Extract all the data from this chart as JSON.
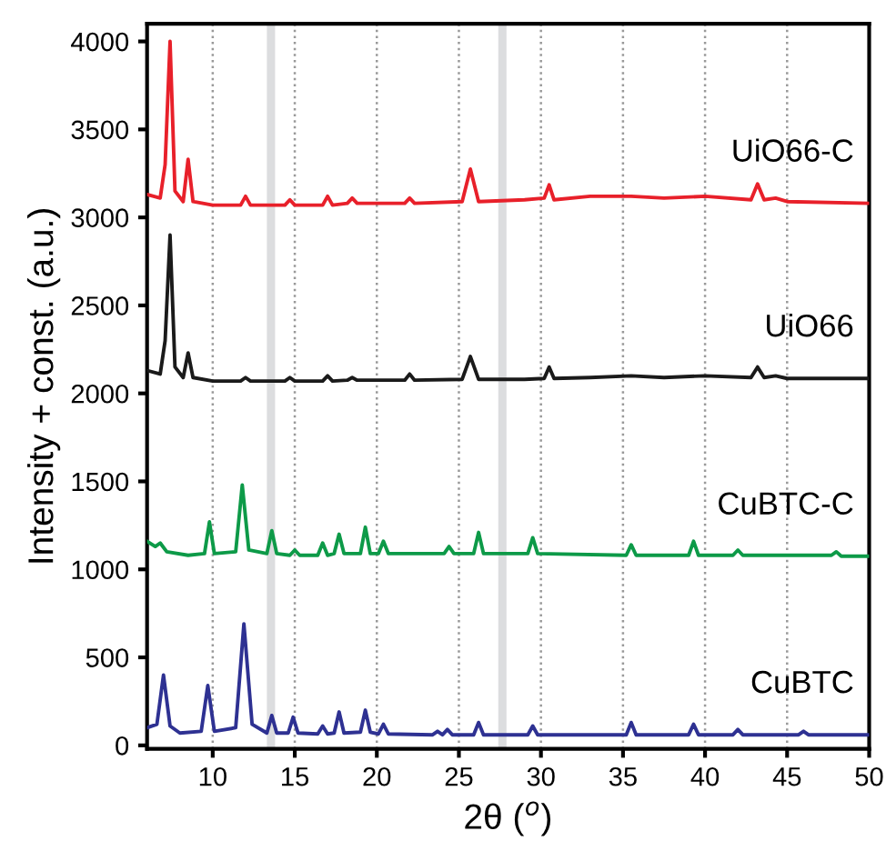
{
  "chart_data": {
    "type": "line",
    "xlabel": "2θ ($^{o}$)",
    "ylabel": "Intensity + const. (a.u.)",
    "xlim": [
      6,
      50
    ],
    "ylim": [
      -20,
      4100
    ],
    "xticks": [
      10,
      15,
      20,
      25,
      30,
      35,
      40,
      45,
      50
    ],
    "yticks": [
      0,
      500,
      1000,
      1500,
      2000,
      2500,
      3000,
      3500,
      4000
    ],
    "grid": "x",
    "legend": false,
    "bands": [
      {
        "axis": "x",
        "from": 13.3,
        "to": 13.8,
        "color": "#dcdddf"
      },
      {
        "axis": "x",
        "from": 27.4,
        "to": 27.9,
        "color": "#dcdddf"
      }
    ],
    "series": [
      {
        "name": "CuBTC",
        "color": "#2e3192",
        "x": [
          6,
          6.6,
          7,
          7.4,
          8,
          9.3,
          9.7,
          10.1,
          11.4,
          11.9,
          12.4,
          13.3,
          13.6,
          13.9,
          14.6,
          14.9,
          15.2,
          16.4,
          16.7,
          17,
          17.4,
          17.7,
          18,
          19,
          19.3,
          19.6,
          20.1,
          20.4,
          20.7,
          23.4,
          23.7,
          24,
          24.3,
          24.6,
          25.9,
          26.2,
          26.5,
          29.2,
          29.5,
          29.8,
          35.2,
          35.5,
          35.8,
          39,
          39.3,
          39.6,
          41.7,
          42,
          42.3,
          45.7,
          46,
          46.3,
          50
        ],
        "values": [
          100,
          120,
          400,
          110,
          70,
          80,
          340,
          80,
          100,
          690,
          120,
          70,
          170,
          70,
          70,
          160,
          70,
          65,
          110,
          65,
          70,
          190,
          70,
          75,
          200,
          75,
          65,
          120,
          65,
          60,
          80,
          60,
          90,
          60,
          60,
          130,
          60,
          60,
          110,
          60,
          60,
          130,
          60,
          60,
          120,
          60,
          60,
          90,
          60,
          60,
          80,
          60,
          60
        ]
      },
      {
        "name": "CuBTC-C",
        "color": "#0d9a48",
        "x": [
          6,
          6.5,
          6.8,
          7.2,
          8.5,
          9.5,
          9.8,
          10.1,
          11.4,
          11.8,
          12.2,
          13.3,
          13.6,
          13.9,
          14.7,
          15,
          15.3,
          16.4,
          16.7,
          17,
          17.4,
          17.7,
          18,
          19,
          19.3,
          19.6,
          20.1,
          20.4,
          20.7,
          24.1,
          24.4,
          24.7,
          25.9,
          26.2,
          26.5,
          29.2,
          29.5,
          29.8,
          35.2,
          35.5,
          35.8,
          39,
          39.3,
          39.6,
          41.7,
          42,
          42.3,
          47.7,
          48,
          48.3,
          50
        ],
        "values": [
          1160,
          1130,
          1150,
          1100,
          1080,
          1090,
          1270,
          1090,
          1100,
          1480,
          1110,
          1090,
          1220,
          1090,
          1080,
          1110,
          1080,
          1080,
          1150,
          1080,
          1090,
          1200,
          1090,
          1090,
          1240,
          1090,
          1090,
          1160,
          1090,
          1090,
          1130,
          1090,
          1090,
          1210,
          1090,
          1090,
          1180,
          1090,
          1080,
          1140,
          1080,
          1080,
          1160,
          1080,
          1080,
          1110,
          1080,
          1080,
          1100,
          1075,
          1075
        ]
      },
      {
        "name": "UiO66",
        "color": "#1a1a1a",
        "x": [
          6,
          6.8,
          7.1,
          7.4,
          7.7,
          8.2,
          8.5,
          8.8,
          10,
          11.7,
          12,
          12.3,
          14.4,
          14.7,
          15,
          16.7,
          17,
          17.3,
          18.2,
          18.5,
          18.8,
          21.7,
          22,
          22.3,
          25.2,
          25.7,
          26.2,
          29,
          30.2,
          30.5,
          30.8,
          33,
          35.5,
          37.5,
          40,
          42.8,
          43.2,
          43.6,
          44.3,
          45,
          50
        ],
        "values": [
          2130,
          2110,
          2300,
          2900,
          2150,
          2090,
          2230,
          2090,
          2070,
          2070,
          2090,
          2070,
          2070,
          2090,
          2070,
          2070,
          2100,
          2070,
          2075,
          2090,
          2075,
          2075,
          2110,
          2075,
          2080,
          2210,
          2080,
          2080,
          2085,
          2150,
          2085,
          2090,
          2100,
          2090,
          2100,
          2090,
          2150,
          2090,
          2100,
          2085,
          2085
        ]
      },
      {
        "name": "UiO66-C",
        "color": "#e8202a",
        "x": [
          6,
          6.8,
          7.1,
          7.4,
          7.7,
          8.2,
          8.5,
          8.8,
          10,
          11.7,
          12,
          12.3,
          14.4,
          14.7,
          15,
          16.7,
          17,
          17.3,
          18.2,
          18.5,
          18.8,
          21.7,
          22,
          22.3,
          25.2,
          25.7,
          26.2,
          29,
          30.2,
          30.5,
          30.8,
          33,
          35.5,
          37.5,
          40,
          42.8,
          43.2,
          43.6,
          44.3,
          45,
          50
        ],
        "values": [
          3130,
          3110,
          3300,
          4000,
          3150,
          3090,
          3330,
          3090,
          3070,
          3070,
          3120,
          3070,
          3070,
          3100,
          3070,
          3070,
          3120,
          3070,
          3080,
          3110,
          3080,
          3080,
          3110,
          3080,
          3090,
          3275,
          3090,
          3100,
          3110,
          3185,
          3100,
          3120,
          3120,
          3110,
          3120,
          3100,
          3190,
          3100,
          3110,
          3090,
          3080
        ]
      }
    ]
  }
}
